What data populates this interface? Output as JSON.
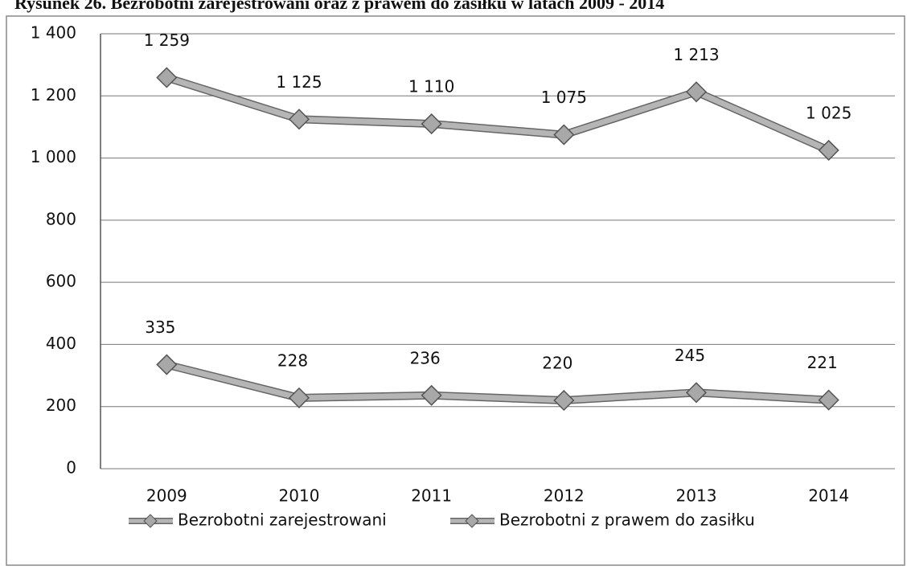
{
  "chart_data": {
    "type": "line",
    "title": "Rysunek 26. Bezrobotni zarejestrowani oraz z prawem do zasiłku w latach 2009 - 2014",
    "categories": [
      "2009",
      "2010",
      "2011",
      "2012",
      "2013",
      "2014"
    ],
    "series": [
      {
        "name": "Bezrobotni zarejestrowani",
        "color": "#b5b5b5",
        "values": [
          1259,
          1125,
          1110,
          1075,
          1213,
          1025
        ],
        "value_labels": [
          "1 259",
          "1 125",
          "1 110",
          "1 075",
          "1 213",
          "1 025"
        ]
      },
      {
        "name": "Bezrobotni z prawem do zasiłku",
        "color": "#b5b5b5",
        "values": [
          335,
          228,
          236,
          220,
          245,
          221
        ]
      }
    ],
    "ylim": [
      0,
      1400
    ],
    "yticks": [
      0,
      200,
      400,
      600,
      800,
      {
        "value": 1000,
        "label": "1 000"
      },
      {
        "value": 1200,
        "label": "1 200"
      },
      {
        "value": 1400,
        "label": "1 400"
      }
    ],
    "grid": true,
    "legend": "bottom"
  }
}
